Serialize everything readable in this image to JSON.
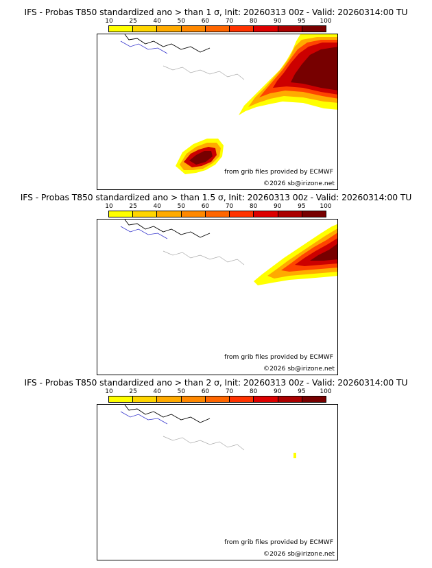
{
  "panels": [
    {
      "title": "IFS - Probas T850  standardized ano > than 1 σ, Init: 20260313 00z - Valid: 20260314:00 TU",
      "threshold_sigma": 1
    },
    {
      "title": "IFS - Probas T850  standardized ano > than 1.5 σ, Init: 20260313 00z - Valid: 20260314:00 TU",
      "threshold_sigma": 1.5
    },
    {
      "title": "IFS - Probas T850  standardized ano > than 2 σ, Init: 20260313 00z - Valid: 20260314:00 TU",
      "threshold_sigma": 2
    }
  ],
  "colorbar": {
    "ticks": [
      "10",
      "25",
      "40",
      "50",
      "60",
      "70",
      "80",
      "90",
      "95",
      "100"
    ],
    "colors": [
      "#ffff00",
      "#ffd500",
      "#ffaa00",
      "#ff8800",
      "#ff6600",
      "#ff3300",
      "#dd0000",
      "#aa0000",
      "#770000"
    ]
  },
  "credits": {
    "source": "from grib files provided by ECMWF",
    "copyright": "©2026 sb@irizone.net"
  },
  "map_layers": {
    "coastline_color": "#000000",
    "rivers_color": "#3333cc",
    "admin_borders_color": "#aaaaaa"
  }
}
